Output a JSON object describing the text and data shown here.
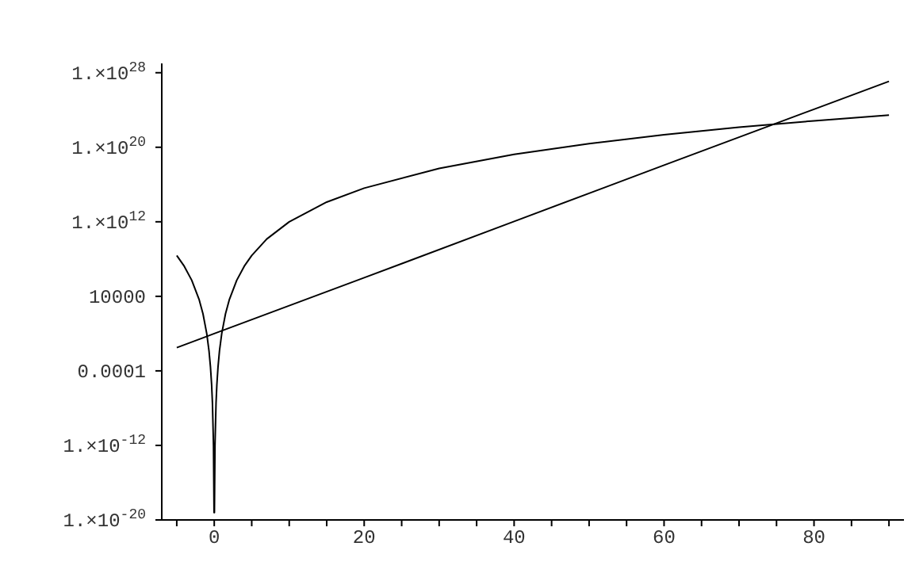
{
  "chart_data": {
    "type": "line",
    "log": "y",
    "marker": "none",
    "line_style": "solid",
    "xlim": [
      -7,
      92
    ],
    "xticks": [
      {
        "value": -5,
        "label": null
      },
      0,
      {
        "value": 5,
        "label": null
      },
      {
        "value": 10,
        "label": null
      },
      {
        "value": 15,
        "label": null
      },
      20,
      {
        "value": 25,
        "label": null
      },
      {
        "value": 30,
        "label": null
      },
      {
        "value": 35,
        "label": null
      },
      40,
      {
        "value": 45,
        "label": null
      },
      {
        "value": 50,
        "label": null
      },
      {
        "value": 55,
        "label": null
      },
      60,
      {
        "value": 65,
        "label": null
      },
      {
        "value": 70,
        "label": null
      },
      {
        "value": 75,
        "label": null
      },
      80,
      {
        "value": 85,
        "label": null
      },
      {
        "value": 90,
        "label": null
      }
    ],
    "ylim": [
      1e-20,
      1e+29
    ],
    "yticks": [
      {
        "value": 1e-20,
        "label": "1.×10$^{-20}$"
      },
      {
        "value": 1e-12,
        "label": "1.×10$^{-12}$"
      },
      {
        "value": 0.0001,
        "label": "0.0001"
      },
      {
        "value": 10000,
        "label": "10000"
      },
      {
        "value": 1000000000000.0,
        "label": "1.×10$^{12}$"
      },
      {
        "value": 1e+20,
        "label": "1.×10$^{20}$"
      },
      {
        "value": 1e+28,
        "label": "1.×10$^{28}$"
      }
    ],
    "series": [
      {
        "color": "#000000",
        "x": [
          -5,
          -4,
          -3,
          -2,
          -1.5,
          -1,
          -0.7,
          -0.5,
          -0.35,
          -0.24,
          -0.1,
          -0.025,
          0.025,
          0.1,
          0.24,
          0.35,
          0.5,
          0.7,
          1,
          1.5,
          2,
          3,
          4,
          5,
          7,
          10,
          15,
          20,
          30,
          40,
          50,
          60,
          70,
          80,
          90
        ],
        "values": [
          240000000.0,
          17000000.0,
          530000.0,
          4100,
          130,
          1,
          0.014,
          0.00024,
          3.4e-06,
          3.6e-08,
          1e-12,
          6e-20,
          6e-20,
          1e-12,
          3.6e-08,
          3.4e-06,
          0.00024,
          0.014,
          1,
          130,
          4100,
          530000.0,
          17000000.0,
          240000000.0,
          14000000000.0,
          1000000000000.0,
          130000000000000.0,
          4100000000000000.0,
          5.3e+17,
          1.7e+19,
          2.4e+20,
          2.2e+21,
          1.4e+22,
          6.9e+22,
          2.8e+23
        ]
      },
      {
        "color": "#000000",
        "x": [
          -5,
          0,
          20,
          40,
          60,
          80,
          90
        ],
        "values": [
          0.031,
          1,
          1000000.0,
          1100000000000.0,
          1.2e+18,
          1.2e+24,
          1.2e+27
        ]
      }
    ]
  }
}
